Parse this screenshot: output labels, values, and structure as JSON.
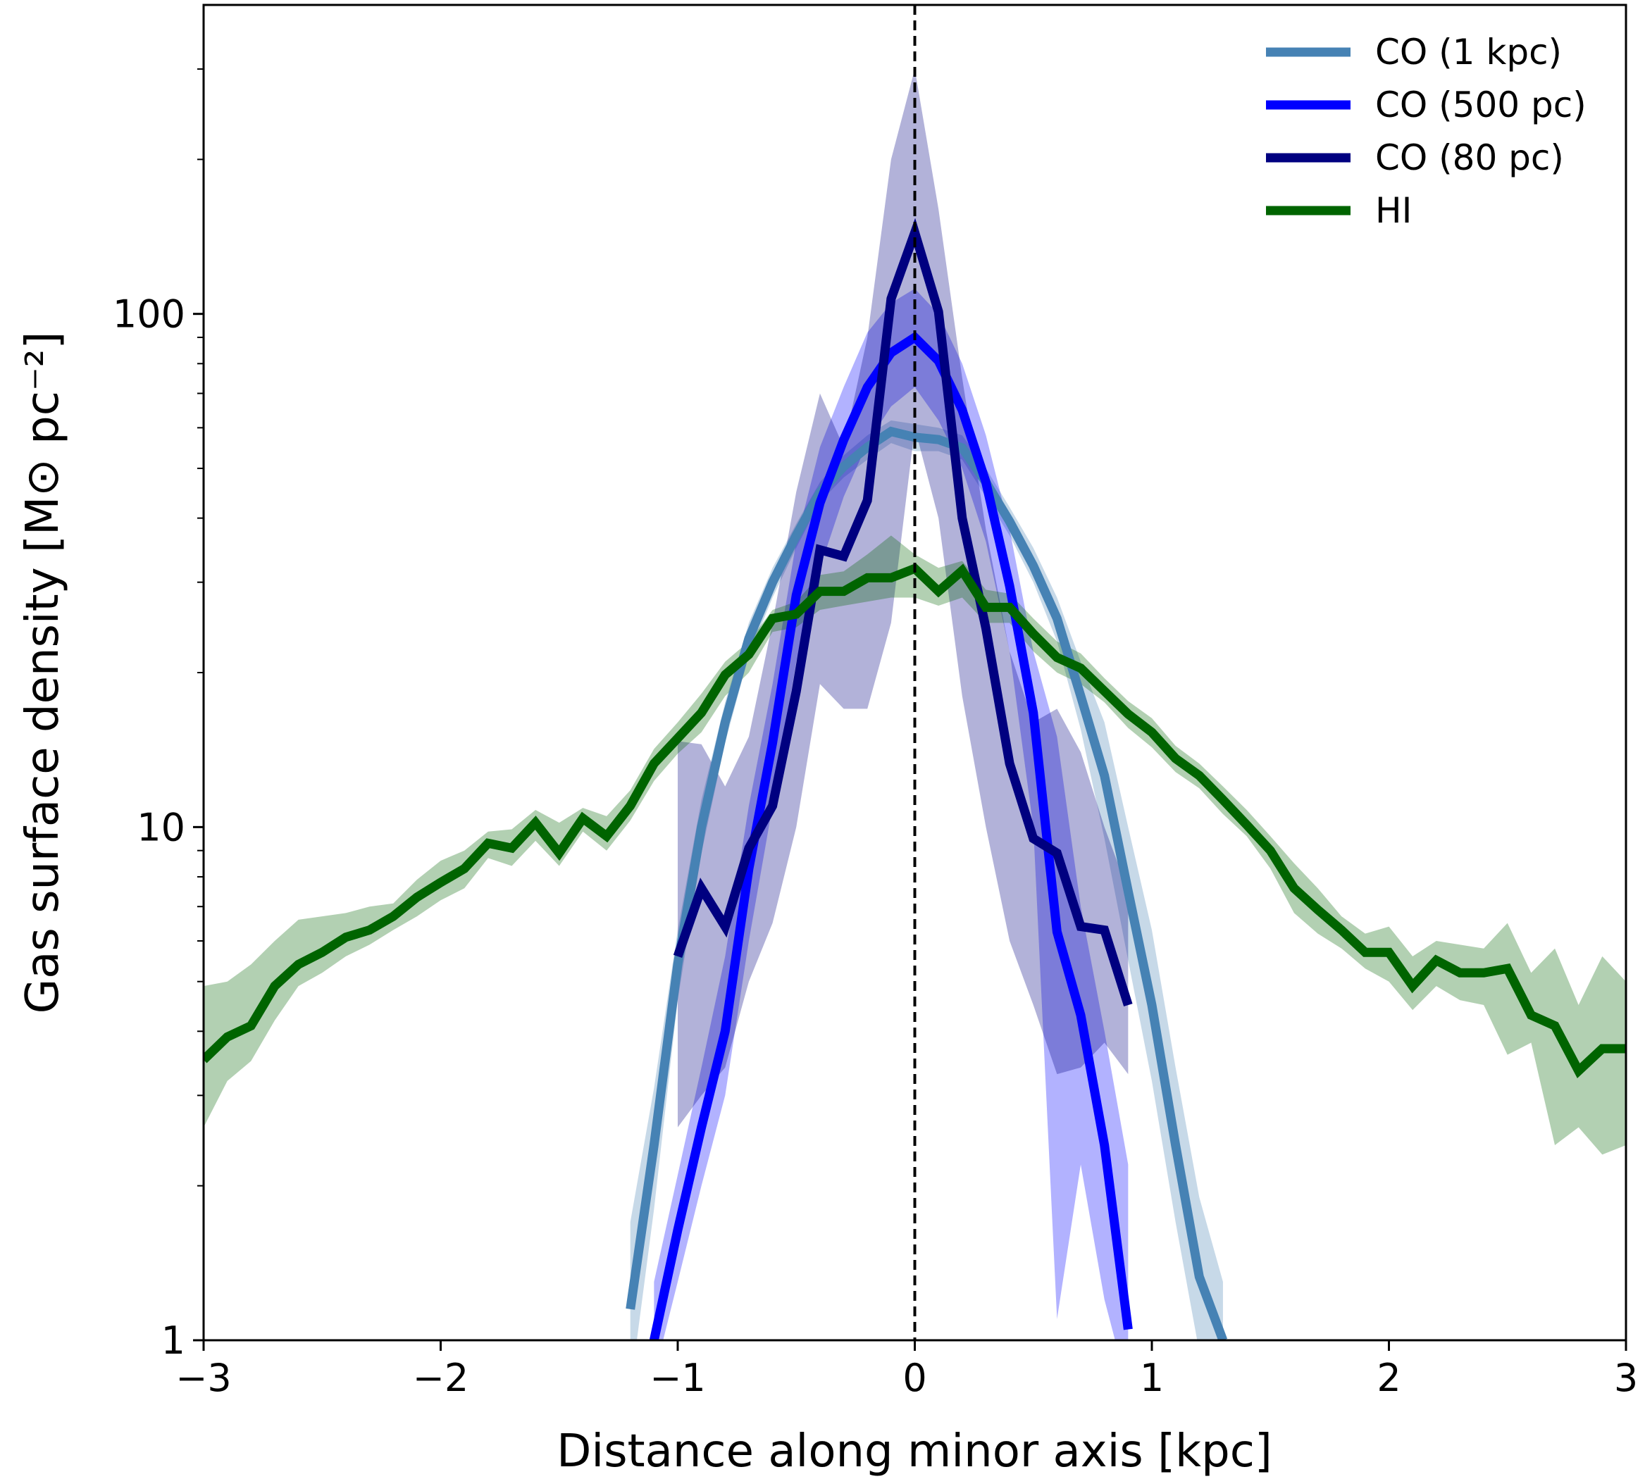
{
  "chart_data": {
    "type": "line",
    "xlabel": "Distance along minor axis [kpc]",
    "ylabel": "Gas surface density [M⊙ pc⁻²]",
    "xlim": [
      -3,
      3
    ],
    "xticks": [
      {
        "value": -3,
        "label": "−3"
      },
      {
        "value": -2,
        "label": "−2"
      },
      {
        "value": -1,
        "label": "−1"
      },
      0,
      1,
      2,
      3
    ],
    "ylim": [
      1,
      400
    ],
    "yscale": "log",
    "yticks": [
      1,
      10,
      100
    ],
    "yticks_minor": [
      2,
      3,
      4,
      5,
      6,
      7,
      8,
      9,
      20,
      30,
      40,
      50,
      60,
      70,
      80,
      90,
      200,
      300
    ],
    "vline": 0,
    "legend": "upper right",
    "series": [
      {
        "name": "CO (1 kpc)",
        "color": "#4682b4",
        "x": [
          -1.2,
          -1.1,
          -1.0,
          -0.9,
          -0.8,
          -0.7,
          -0.6,
          -0.5,
          -0.4,
          -0.3,
          -0.2,
          -0.1,
          0.0,
          0.1,
          0.2,
          0.3,
          0.4,
          0.5,
          0.6,
          0.7,
          0.8,
          0.9,
          1.0,
          1.1,
          1.2,
          1.3
        ],
        "values": [
          1.15,
          2.4,
          5.4,
          10,
          16,
          23.3,
          30,
          37,
          44.9,
          50.4,
          55,
          59,
          57.5,
          56.9,
          54.8,
          47,
          39.4,
          32.3,
          25.5,
          18,
          12.6,
          7.5,
          4.5,
          2.4,
          1.33,
          1.0
        ],
        "band_upper": [
          1.7,
          3.1,
          6.3,
          11.3,
          17.5,
          25,
          32,
          39,
          47,
          53,
          58,
          62,
          61,
          60,
          58,
          50,
          42,
          35,
          28,
          21,
          16,
          10,
          6.3,
          3.4,
          1.9,
          1.3
        ],
        "band_lower": [
          0.8,
          1.8,
          4.6,
          8.9,
          14.6,
          21.6,
          28,
          35,
          43,
          48,
          52,
          56,
          54,
          54,
          52,
          44,
          37,
          30,
          23,
          15.5,
          9.5,
          5.5,
          3.2,
          1.7,
          0.95,
          0.75
        ]
      },
      {
        "name": "CO (500 pc)",
        "color": "#0000ff",
        "x": [
          -1.1,
          -1.0,
          -0.9,
          -0.8,
          -0.7,
          -0.6,
          -0.5,
          -0.4,
          -0.3,
          -0.2,
          -0.1,
          0.0,
          0.1,
          0.2,
          0.3,
          0.4,
          0.5,
          0.6,
          0.7,
          0.8,
          0.9
        ],
        "values": [
          1.0,
          1.64,
          2.6,
          4.0,
          8.3,
          14.6,
          28.3,
          42.8,
          56.8,
          72,
          84,
          90,
          81,
          65,
          47,
          29.5,
          16.7,
          6.25,
          4.3,
          2.4,
          1.05
        ],
        "band_upper": [
          1.3,
          2.1,
          3.4,
          5.6,
          11,
          19,
          36,
          55,
          72,
          92,
          105,
          112,
          100,
          80,
          58,
          38,
          22,
          15,
          7,
          4.0,
          2.2
        ],
        "band_lower": [
          0.85,
          1.3,
          2.0,
          3.0,
          6.0,
          11,
          21,
          32,
          44,
          56,
          66,
          72,
          62,
          50,
          36,
          22,
          10,
          1.1,
          2.2,
          1.2,
          0.8
        ]
      },
      {
        "name": "CO (80 pc)",
        "color": "#000080",
        "x": [
          -1.0,
          -0.9,
          -0.8,
          -0.7,
          -0.6,
          -0.5,
          -0.4,
          -0.3,
          -0.2,
          -0.1,
          0.0,
          0.1,
          0.2,
          0.3,
          0.4,
          0.5,
          0.6,
          0.7,
          0.8,
          0.9
        ],
        "values": [
          5.6,
          7.6,
          6.4,
          9.1,
          11.0,
          18.4,
          34.7,
          33.7,
          43.3,
          107,
          144,
          101,
          40,
          24.4,
          13.3,
          9.5,
          8.9,
          6.4,
          6.3,
          4.5
        ],
        "band_upper": [
          14.7,
          14.5,
          12,
          15,
          25,
          45,
          70,
          55,
          90,
          200,
          300,
          160,
          75,
          38,
          22,
          16,
          17,
          14,
          10,
          7.5
        ],
        "band_lower": [
          2.6,
          3.0,
          3.4,
          5.0,
          6.5,
          10,
          19,
          17,
          17,
          25,
          60,
          40,
          18,
          10,
          6,
          4.5,
          3.3,
          3.4,
          3.8,
          3.3
        ]
      },
      {
        "name": "HI",
        "color": "#006400",
        "x": [
          -3.0,
          -2.9,
          -2.8,
          -2.7,
          -2.6,
          -2.5,
          -2.4,
          -2.3,
          -2.2,
          -2.1,
          -2.0,
          -1.9,
          -1.8,
          -1.7,
          -1.6,
          -1.5,
          -1.4,
          -1.3,
          -1.2,
          -1.1,
          -1.0,
          -0.9,
          -0.8,
          -0.7,
          -0.6,
          -0.5,
          -0.4,
          -0.3,
          -0.2,
          -0.1,
          0.0,
          0.1,
          0.2,
          0.3,
          0.4,
          0.5,
          0.6,
          0.7,
          0.8,
          0.9,
          1.0,
          1.1,
          1.2,
          1.3,
          1.4,
          1.5,
          1.6,
          1.7,
          1.8,
          1.9,
          2.0,
          2.1,
          2.2,
          2.3,
          2.4,
          2.5,
          2.6,
          2.7,
          2.8,
          2.9,
          3.0
        ],
        "values": [
          3.52,
          3.9,
          4.1,
          4.9,
          5.4,
          5.7,
          6.1,
          6.3,
          6.7,
          7.3,
          7.8,
          8.3,
          9.3,
          9.1,
          10.2,
          8.9,
          10.4,
          9.6,
          11.0,
          13.3,
          14.9,
          16.7,
          19.8,
          21.7,
          25.5,
          26,
          28.8,
          28.8,
          30.6,
          30.6,
          31.9,
          28.8,
          31.6,
          26.8,
          26.8,
          23.8,
          21.4,
          20.4,
          18.4,
          16.6,
          15.3,
          13.6,
          12.6,
          11.3,
          10.1,
          9.0,
          7.6,
          6.9,
          6.3,
          5.7,
          5.7,
          4.9,
          5.5,
          5.2,
          5.2,
          5.3,
          4.3,
          4.1,
          3.35,
          3.7,
          3.7
        ],
        "band_upper": [
          4.9,
          5.0,
          5.4,
          6.0,
          6.6,
          6.7,
          6.8,
          7.0,
          7.1,
          7.9,
          8.6,
          9.0,
          9.8,
          9.9,
          10.8,
          10.2,
          10.9,
          10.5,
          11.8,
          14.2,
          16.0,
          18.2,
          21,
          23,
          26.5,
          27.5,
          31,
          31.5,
          34,
          37,
          34,
          32,
          33,
          29,
          28.5,
          25.5,
          23,
          21.8,
          19.5,
          17.6,
          16.3,
          14.4,
          13.3,
          12.0,
          10.8,
          9.6,
          8.5,
          7.6,
          6.7,
          6.2,
          6.4,
          5.6,
          6.0,
          5.9,
          5.8,
          6.5,
          5.2,
          5.8,
          4.5,
          5.6,
          5.0
        ],
        "band_lower": [
          2.6,
          3.2,
          3.5,
          4.2,
          4.9,
          5.2,
          5.6,
          5.9,
          6.3,
          6.7,
          7.2,
          7.6,
          8.7,
          8.4,
          9.4,
          8.4,
          9.8,
          9.0,
          10.3,
          12.3,
          13.9,
          15.3,
          18,
          20,
          24,
          24.5,
          26.5,
          27,
          27.5,
          28,
          28,
          27,
          28,
          25,
          25,
          22,
          20,
          19,
          17.5,
          15.6,
          14.3,
          12.8,
          11.9,
          10.6,
          9.6,
          8.3,
          6.8,
          6.2,
          5.8,
          5.3,
          5.0,
          4.4,
          4.9,
          4.6,
          4.5,
          3.6,
          3.8,
          2.4,
          2.6,
          2.3,
          2.4
        ]
      }
    ]
  }
}
